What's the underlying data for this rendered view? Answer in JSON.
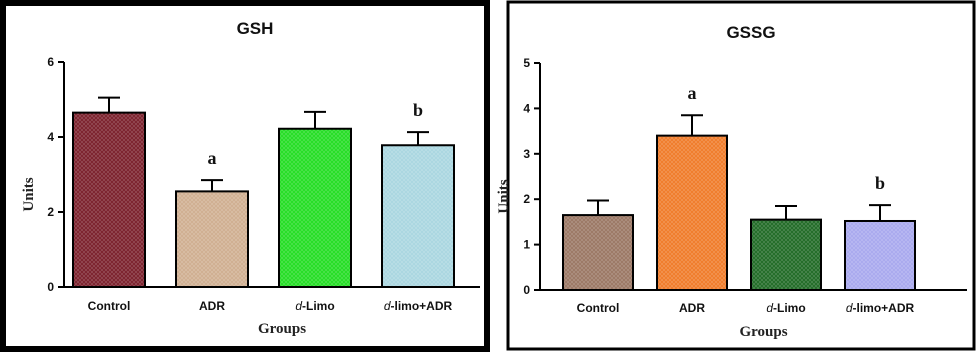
{
  "chart_data": [
    {
      "type": "bar",
      "title": "GSH",
      "xlabel": "Groups",
      "ylabel": "Units",
      "ylim": [
        0,
        6
      ],
      "yticks": [
        "0",
        "2",
        "4",
        "6"
      ],
      "categories": [
        {
          "prefix": "",
          "italic": "",
          "rest": "Control"
        },
        {
          "prefix": "",
          "italic": "",
          "rest": "ADR"
        },
        {
          "prefix": "",
          "italic": "d",
          "rest": "-Limo"
        },
        {
          "prefix": "",
          "italic": "d",
          "rest": "-limo+ADR"
        }
      ],
      "values": [
        4.65,
        2.55,
        4.22,
        3.78
      ],
      "errors": [
        0.4,
        0.3,
        0.45,
        0.35
      ],
      "annotations": [
        "",
        "a",
        "",
        "b"
      ],
      "colors": [
        "#7a1f2b",
        "#cfae90",
        "#22dd22",
        "#a9d6e0"
      ],
      "grid": false
    },
    {
      "type": "bar",
      "title": "GSSG",
      "xlabel": "Groups",
      "ylabel": "Units",
      "ylim": [
        0,
        5
      ],
      "yticks": [
        "0",
        "1",
        "2",
        "3",
        "4",
        "5"
      ],
      "categories": [
        {
          "prefix": "",
          "italic": "",
          "rest": "Control"
        },
        {
          "prefix": "",
          "italic": "",
          "rest": "ADR"
        },
        {
          "prefix": "",
          "italic": "d",
          "rest": "-Limo"
        },
        {
          "prefix": "",
          "italic": "d",
          "rest": "-limo+ADR"
        }
      ],
      "values": [
        1.65,
        3.4,
        1.55,
        1.52
      ],
      "errors": [
        0.32,
        0.45,
        0.3,
        0.35
      ],
      "annotations": [
        "",
        "a",
        "",
        "b"
      ],
      "colors": [
        "#9a7663",
        "#f07a28",
        "#1f6a25",
        "#a8a8ee"
      ],
      "grid": false
    }
  ]
}
